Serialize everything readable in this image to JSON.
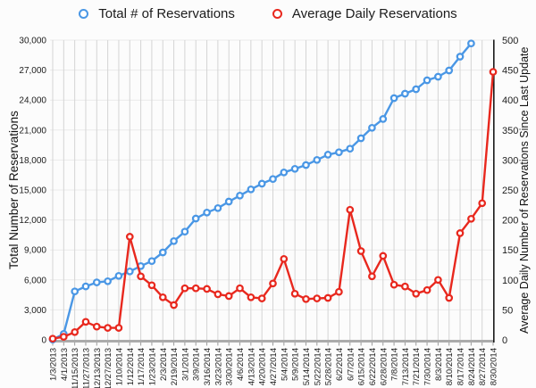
{
  "chart": {
    "legend_items": [
      {
        "label": "Total # of Reservations",
        "color": "#4a97e5"
      },
      {
        "label": "Average Daily Reservations",
        "color": "#e8281e"
      }
    ],
    "left_axis_title": "Total Number of Reservations",
    "right_axis_title": "Average Daily Number of Reservations Since Last Update"
  },
  "chart_data": {
    "type": "line",
    "title": "",
    "legend_position": "top",
    "grid": true,
    "x_tick_rotation": -90,
    "categories": [
      "1/3/2013",
      "4/1/2013",
      "11/15/2013",
      "11/27/2013",
      "12/13/2013",
      "12/27/2013",
      "1/10/2014",
      "1/12/2014",
      "1/17/2014",
      "1/23/2014",
      "2/3/2014",
      "2/19/2014",
      "3/1/2014",
      "3/9/2014",
      "3/16/2014",
      "3/23/2014",
      "3/30/2014",
      "4/6/2014",
      "4/13/2014",
      "4/20/2014",
      "4/27/2014",
      "5/4/2014",
      "5/9/2014",
      "5/14/2014",
      "5/22/2014",
      "5/28/2014",
      "6/2/2014",
      "6/7/2014",
      "6/15/2014",
      "6/22/2014",
      "6/28/2014",
      "7/8/2014",
      "7/13/2014",
      "7/21/2014",
      "7/30/2014",
      "8/3/2014",
      "8/10/2014",
      "8/17/2014",
      "8/24/2014",
      "8/27/2014",
      "8/30/2014"
    ],
    "series": [
      {
        "id": "total",
        "name": "Total # of Reservations",
        "axis": "left",
        "color": "#4a97e5",
        "marker": "open-circle",
        "values": [
          30,
          600,
          4850,
          5350,
          5750,
          5870,
          6400,
          6850,
          7380,
          7880,
          8750,
          9880,
          10830,
          12140,
          12740,
          13190,
          13840,
          14440,
          15060,
          15630,
          16100,
          16760,
          17120,
          17500,
          18010,
          18540,
          18780,
          19130,
          20180,
          21220,
          22110,
          24200,
          24640,
          25090,
          25980,
          26340,
          26960,
          28350,
          29670,
          null,
          null
        ]
      },
      {
        "id": "average",
        "name": "Average Daily Reservations",
        "axis": "right",
        "color": "#e8281e",
        "marker": "open-circle",
        "values": [
          2,
          5,
          13,
          30,
          22,
          20,
          20,
          172,
          106,
          91,
          71,
          58,
          86,
          86,
          85,
          76,
          73,
          86,
          71,
          69,
          94,
          135,
          77,
          68,
          69,
          70,
          80,
          217,
          148,
          106,
          140,
          92,
          89,
          77,
          83,
          100,
          70,
          178,
          202,
          228,
          447
        ]
      }
    ],
    "left_axis": {
      "label": "Total Number of Reservations",
      "min": 0,
      "max": 30000,
      "step": 3000,
      "tick_format": "comma"
    },
    "right_axis": {
      "label": "Average Daily Number of Reservations Since Last Update",
      "min": 0,
      "max": 500,
      "step": 50
    }
  }
}
